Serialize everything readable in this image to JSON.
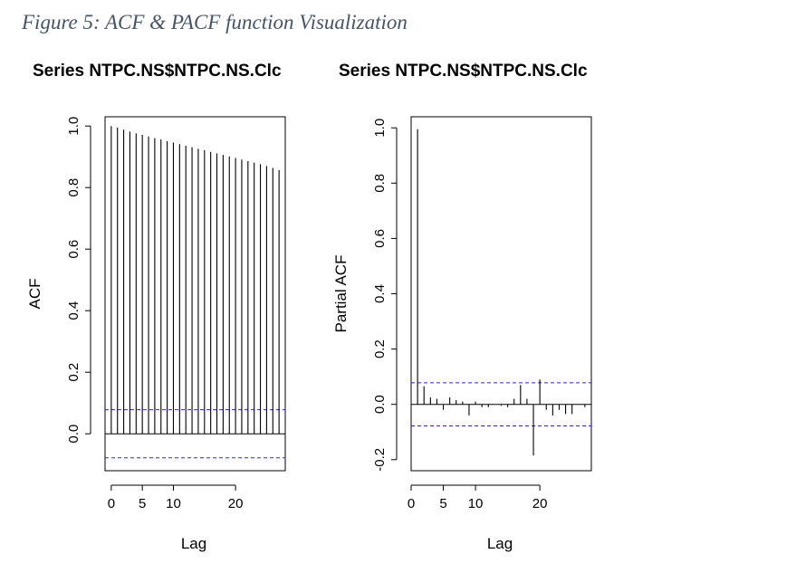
{
  "figure_caption": "Figure 5: ACF & PACF function Visualization",
  "colors": {
    "axis": "#000000",
    "bars": "#000000",
    "confidence_band": "#2b2bd6",
    "caption": "#44546a"
  },
  "chart_data": [
    {
      "type": "bar",
      "title": "Series  NTPC.NS$NTPC.NS.Clc",
      "xlabel": "Lag",
      "ylabel": "ACF",
      "xlim": [
        -1,
        28
      ],
      "ylim": [
        -0.12,
        1.03
      ],
      "xticks": [
        0,
        5,
        10,
        20
      ],
      "xtick_labels": [
        "0",
        "5",
        "10",
        "20"
      ],
      "yticks": [
        0.0,
        0.2,
        0.4,
        0.6,
        0.8,
        1.0
      ],
      "ytick_labels": [
        "0.0",
        "0.2",
        "0.4",
        "0.6",
        "0.8",
        "1.0"
      ],
      "zero_line": true,
      "confidence_bounds": [
        0.078,
        -0.078
      ],
      "series": [
        {
          "lags": [
            0,
            1,
            2,
            3,
            4,
            5,
            6,
            7,
            8,
            9,
            10,
            11,
            12,
            13,
            14,
            15,
            16,
            17,
            18,
            19,
            20,
            21,
            22,
            23,
            24,
            25,
            26,
            27
          ],
          "values": [
            1.0,
            0.995,
            0.988,
            0.982,
            0.976,
            0.971,
            0.966,
            0.961,
            0.956,
            0.951,
            0.946,
            0.941,
            0.936,
            0.931,
            0.926,
            0.921,
            0.916,
            0.911,
            0.906,
            0.901,
            0.896,
            0.891,
            0.886,
            0.881,
            0.876,
            0.87,
            0.864,
            0.857
          ]
        }
      ]
    },
    {
      "type": "bar",
      "title": "Series  NTPC.NS$NTPC.NS.Clc",
      "xlabel": "Lag",
      "ylabel": "Partial ACF",
      "xlim": [
        0,
        28
      ],
      "ylim": [
        -0.24,
        1.04
      ],
      "xticks": [
        0,
        5,
        10,
        20
      ],
      "xtick_labels": [
        "0",
        "5",
        "10",
        "20"
      ],
      "yticks": [
        -0.2,
        0.0,
        0.2,
        0.4,
        0.6,
        0.8,
        1.0
      ],
      "ytick_labels": [
        "-0.2",
        "0.0",
        "0.2",
        "0.4",
        "0.6",
        "0.8",
        "1.0"
      ],
      "zero_line": true,
      "confidence_bounds": [
        0.078,
        -0.078
      ],
      "series": [
        {
          "lags": [
            1,
            2,
            3,
            4,
            5,
            6,
            7,
            8,
            9,
            10,
            11,
            12,
            13,
            14,
            15,
            16,
            17,
            18,
            19,
            20,
            21,
            22,
            23,
            24,
            25,
            26,
            27
          ],
          "values": [
            0.995,
            0.065,
            0.025,
            0.02,
            -0.02,
            0.025,
            0.015,
            0.01,
            -0.04,
            0.01,
            -0.01,
            -0.01,
            0.0,
            -0.005,
            -0.01,
            0.02,
            0.07,
            0.02,
            -0.185,
            0.09,
            -0.02,
            -0.04,
            -0.02,
            -0.035,
            -0.035,
            0.0,
            -0.01
          ]
        }
      ]
    }
  ]
}
